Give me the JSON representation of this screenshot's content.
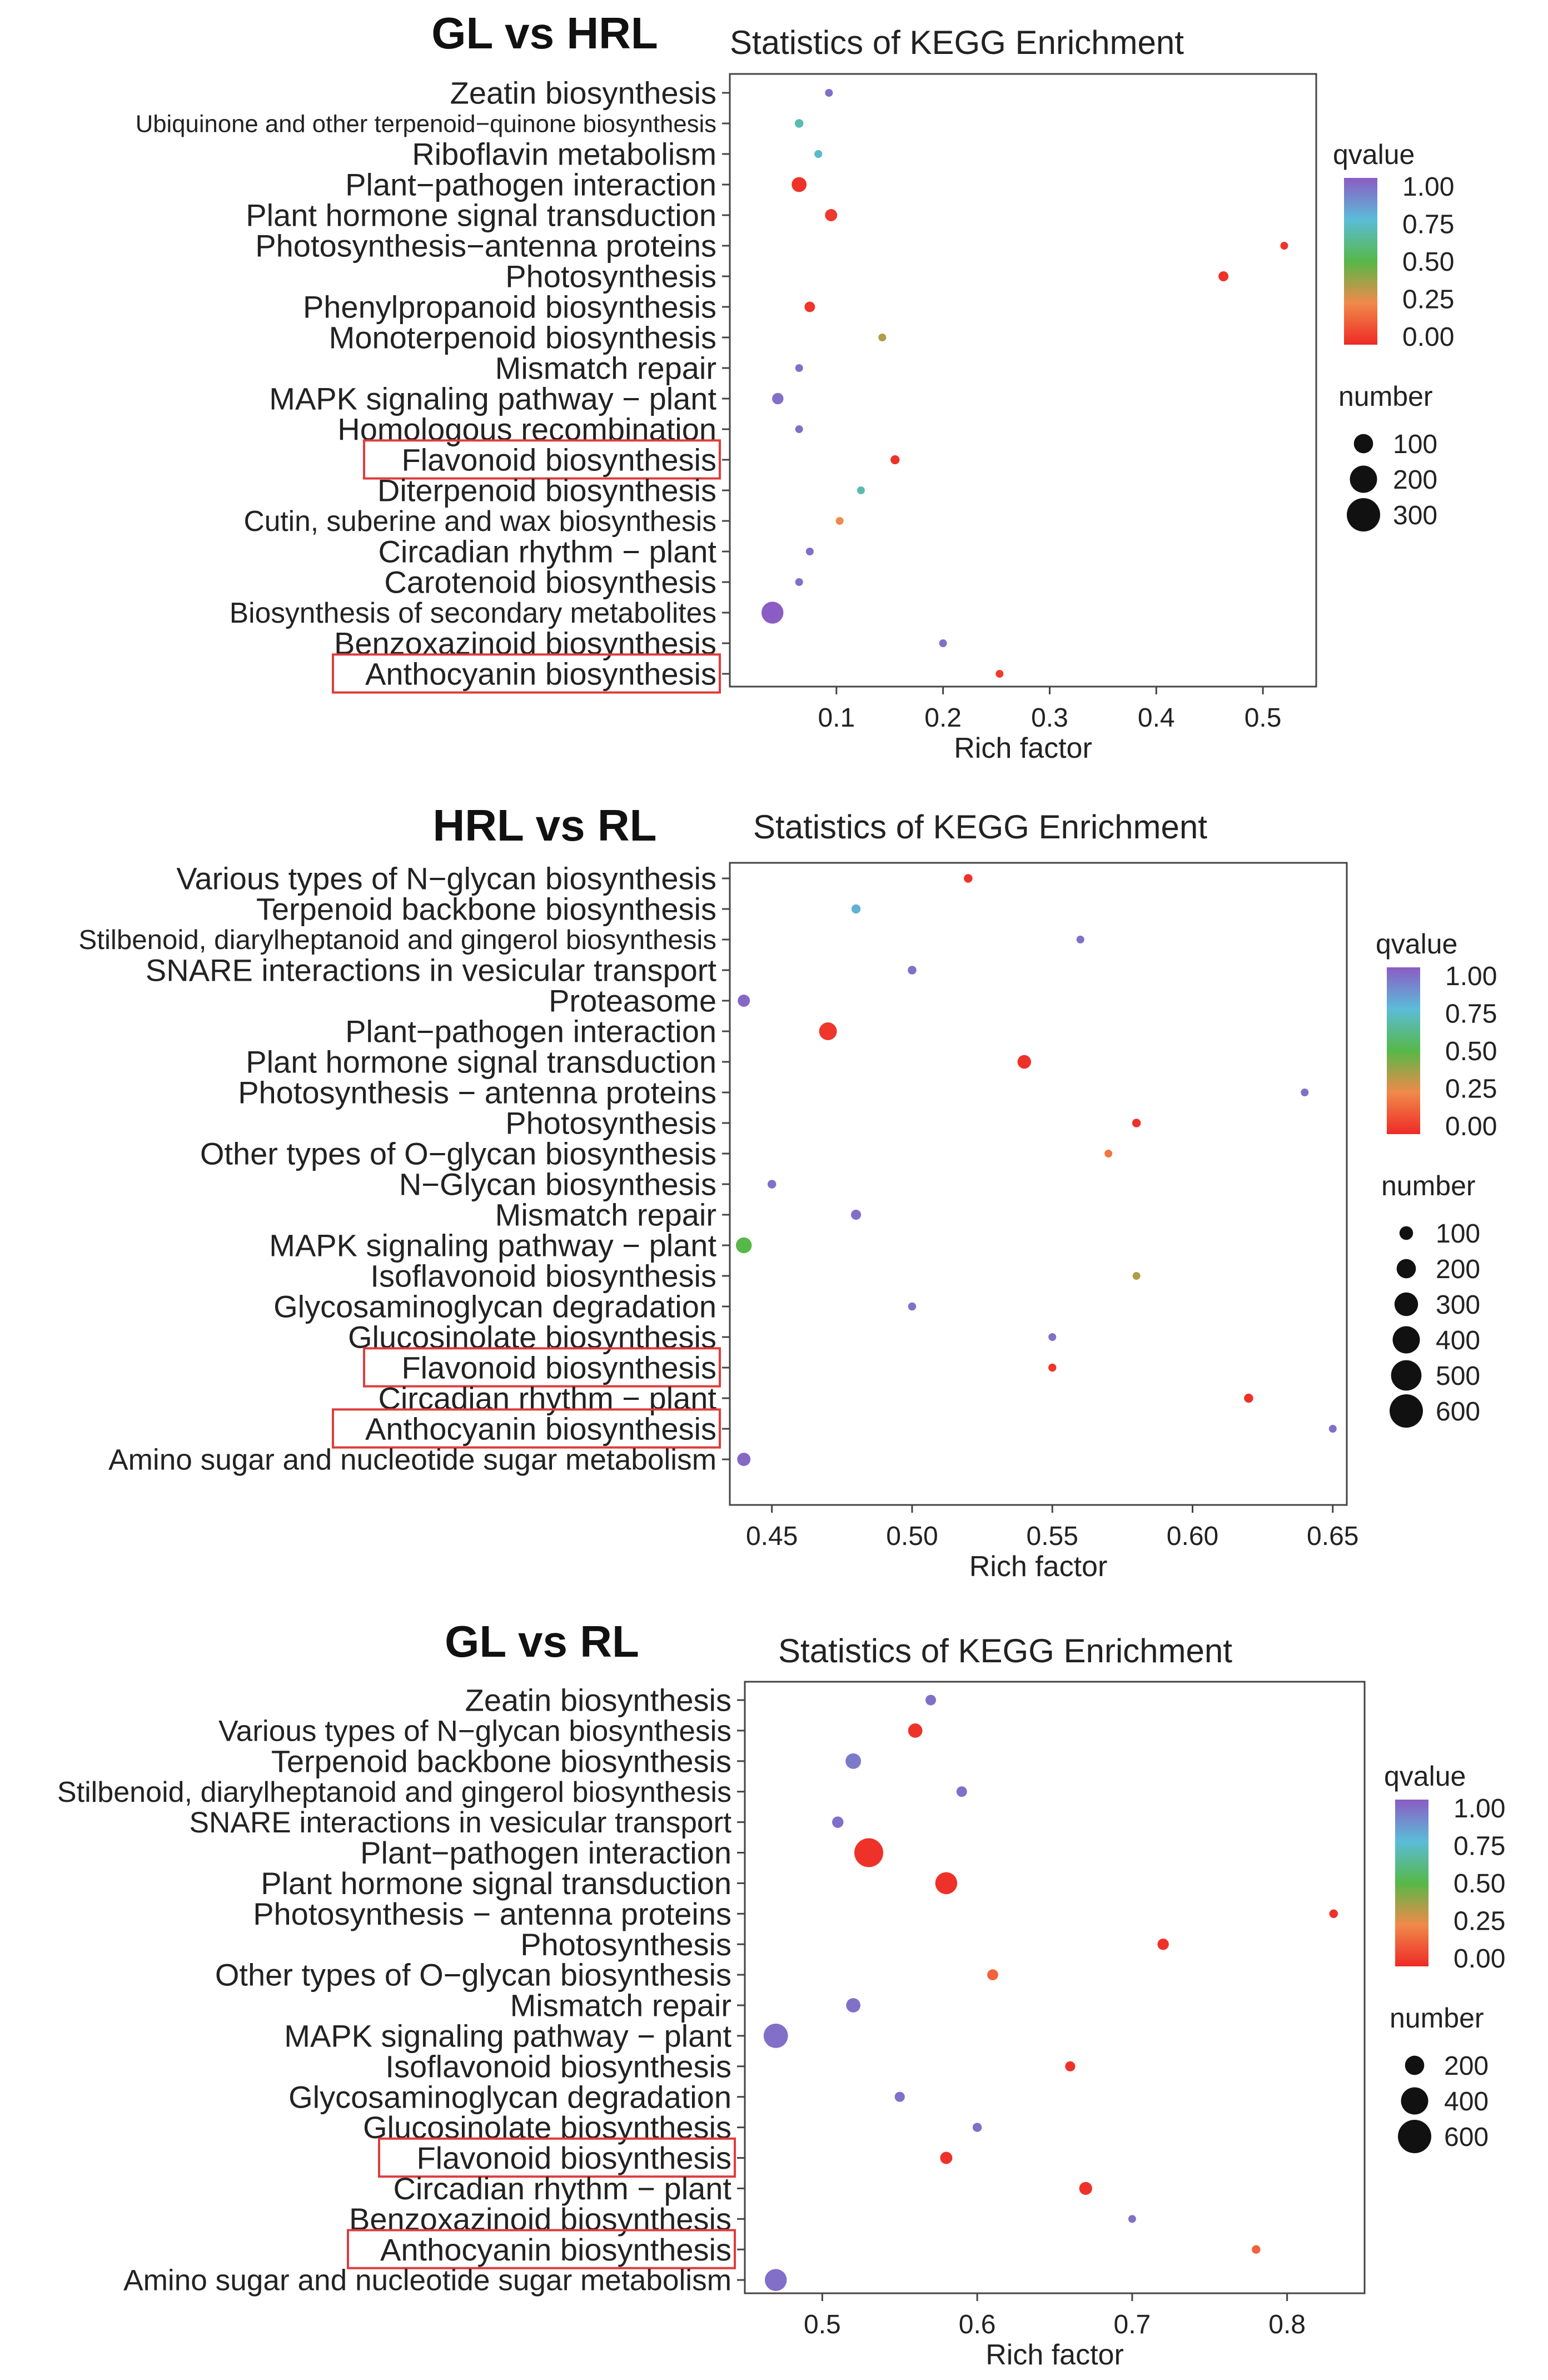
{
  "chart_data": [
    {
      "type": "scatter",
      "comparison": "GL vs HRL",
      "title": "Statistics of KEGG Enrichment",
      "xlabel": "Rich factor",
      "ylabel": "",
      "xlim": [
        0.0,
        0.55
      ],
      "xticks": [
        0.1,
        0.2,
        0.3,
        0.4,
        0.5
      ],
      "xtick_labels": [
        "0.1",
        "0.2",
        "0.3",
        "0.4",
        "0.5"
      ],
      "legend_qvalue": {
        "title": "qvalue",
        "ticks": [
          "1.00",
          "0.75",
          "0.50",
          "0.25",
          "0.00"
        ]
      },
      "legend_number": {
        "title": "number",
        "values": [
          100,
          200,
          300
        ],
        "labels": [
          "100",
          "200",
          "300"
        ]
      },
      "categories": [
        "Zeatin biosynthesis",
        "Ubiquinone and other terpenoid−quinone biosynthesis",
        "Riboflavin metabolism",
        "Plant−pathogen interaction",
        "Plant hormone signal transduction",
        "Photosynthesis−antenna proteins",
        "Photosynthesis",
        "Phenylpropanoid biosynthesis",
        "Monoterpenoid biosynthesis",
        "Mismatch repair",
        "MAPK signaling pathway − plant",
        "Homologous recombination",
        "Flavonoid biosynthesis",
        "Diterpenoid biosynthesis",
        "Cutin, suberine and wax biosynthesis",
        "Circadian rhythm − plant",
        "Carotenoid biosynthesis",
        "Biosynthesis of secondary metabolites",
        "Benzoxazinoid biosynthesis",
        "Anthocyanin biosynthesis"
      ],
      "label_sizes": [
        1,
        0.78,
        1,
        1,
        1,
        1,
        1,
        1,
        1,
        1,
        1,
        1,
        1,
        1,
        0.92,
        1,
        1,
        0.92,
        1,
        1
      ],
      "highlighted": [
        "Flavonoid biosynthesis",
        "Anthocyanin biosynthesis"
      ],
      "points": [
        {
          "rich": 0.093,
          "q": 0.95,
          "n": 8
        },
        {
          "rich": 0.065,
          "q": 0.68,
          "n": 20
        },
        {
          "rich": 0.083,
          "q": 0.72,
          "n": 17
        },
        {
          "rich": 0.065,
          "q": 0.02,
          "n": 60
        },
        {
          "rich": 0.095,
          "q": 0.04,
          "n": 40
        },
        {
          "rich": 0.52,
          "q": 0.02,
          "n": 14
        },
        {
          "rich": 0.463,
          "q": 0.02,
          "n": 27
        },
        {
          "rich": 0.075,
          "q": 0.03,
          "n": 30
        },
        {
          "rich": 0.143,
          "q": 0.35,
          "n": 8
        },
        {
          "rich": 0.065,
          "q": 0.95,
          "n": 14
        },
        {
          "rich": 0.045,
          "q": 0.95,
          "n": 35
        },
        {
          "rich": 0.065,
          "q": 0.95,
          "n": 14
        },
        {
          "rich": 0.155,
          "q": 0.02,
          "n": 22
        },
        {
          "rich": 0.123,
          "q": 0.68,
          "n": 12
        },
        {
          "rich": 0.103,
          "q": 0.25,
          "n": 12
        },
        {
          "rich": 0.075,
          "q": 0.95,
          "n": 12
        },
        {
          "rich": 0.065,
          "q": 0.95,
          "n": 15
        },
        {
          "rich": 0.04,
          "q": 1.0,
          "n": 130
        },
        {
          "rich": 0.2,
          "q": 0.95,
          "n": 4
        },
        {
          "rich": 0.253,
          "q": 0.05,
          "n": 9
        }
      ]
    },
    {
      "type": "scatter",
      "comparison": "HRL vs RL",
      "title": "Statistics of KEGG Enrichment",
      "xlabel": "Rich factor",
      "ylabel": "",
      "xlim": [
        0.435,
        0.655
      ],
      "xticks": [
        0.45,
        0.5,
        0.55,
        0.6,
        0.65
      ],
      "xtick_labels": [
        "0.45",
        "0.50",
        "0.55",
        "0.60",
        "0.65"
      ],
      "legend_qvalue": {
        "title": "qvalue",
        "ticks": [
          "1.00",
          "0.75",
          "0.50",
          "0.25",
          "0.00"
        ]
      },
      "legend_number": {
        "title": "number",
        "values": [
          100,
          200,
          300,
          400,
          500,
          600
        ],
        "labels": [
          "100",
          "200",
          "300",
          "400",
          "500",
          "600"
        ]
      },
      "categories": [
        "Various types of N−glycan biosynthesis",
        "Terpenoid backbone biosynthesis",
        "Stilbenoid, diarylheptanoid and gingerol biosynthesis",
        "SNARE interactions in vesicular transport",
        "Proteasome",
        "Plant−pathogen interaction",
        "Plant hormone signal transduction",
        "Photosynthesis − antenna proteins",
        "Photosynthesis",
        "Other types of O−glycan biosynthesis",
        "N−Glycan biosynthesis",
        "Mismatch repair",
        "MAPK signaling pathway − plant",
        "Isoflavonoid biosynthesis",
        "Glycosaminoglycan degradation",
        "Glucosinolate biosynthesis",
        "Flavonoid biosynthesis",
        "Circadian rhythm − plant",
        "Anthocyanin biosynthesis",
        "Amino sugar and nucleotide sugar metabolism"
      ],
      "label_sizes": [
        1,
        1,
        0.88,
        1,
        1,
        1,
        1,
        1,
        1,
        1,
        1,
        1,
        1,
        1,
        1,
        1,
        1,
        1,
        1,
        0.95
      ],
      "highlighted": [
        "Flavonoid biosynthesis",
        "Anthocyanin biosynthesis"
      ],
      "points": [
        {
          "rich": 0.52,
          "q": 0.02,
          "n": 40
        },
        {
          "rich": 0.48,
          "q": 0.78,
          "n": 45
        },
        {
          "rich": 0.56,
          "q": 0.95,
          "n": 20
        },
        {
          "rich": 0.5,
          "q": 0.95,
          "n": 40
        },
        {
          "rich": 0.44,
          "q": 0.97,
          "n": 80
        },
        {
          "rich": 0.47,
          "q": 0.03,
          "n": 170
        },
        {
          "rich": 0.54,
          "q": 0.02,
          "n": 100
        },
        {
          "rich": 0.64,
          "q": 0.95,
          "n": 15
        },
        {
          "rich": 0.58,
          "q": 0.02,
          "n": 40
        },
        {
          "rich": 0.57,
          "q": 0.2,
          "n": 30
        },
        {
          "rich": 0.45,
          "q": 0.95,
          "n": 40
        },
        {
          "rich": 0.48,
          "q": 0.95,
          "n": 55
        },
        {
          "rich": 0.44,
          "q": 0.5,
          "n": 135
        },
        {
          "rich": 0.58,
          "q": 0.35,
          "n": 25
        },
        {
          "rich": 0.5,
          "q": 0.95,
          "n": 35
        },
        {
          "rich": 0.55,
          "q": 0.95,
          "n": 25
        },
        {
          "rich": 0.55,
          "q": 0.03,
          "n": 35
        },
        {
          "rich": 0.62,
          "q": 0.02,
          "n": 45
        },
        {
          "rich": 0.65,
          "q": 0.95,
          "n": 10
        },
        {
          "rich": 0.44,
          "q": 0.97,
          "n": 95
        }
      ]
    },
    {
      "type": "scatter",
      "comparison": "GL vs RL",
      "title": "Statistics of KEGG Enrichment",
      "xlabel": "Rich factor",
      "ylabel": "",
      "xlim": [
        0.45,
        0.85
      ],
      "xticks": [
        0.5,
        0.6,
        0.7,
        0.8
      ],
      "xtick_labels": [
        "0.5",
        "0.6",
        "0.7",
        "0.8"
      ],
      "legend_qvalue": {
        "title": "qvalue",
        "ticks": [
          "1.00",
          "0.75",
          "0.50",
          "0.25",
          "0.00"
        ]
      },
      "legend_number": {
        "title": "number",
        "values": [
          200,
          400,
          600
        ],
        "labels": [
          "200",
          "400",
          "600"
        ]
      },
      "categories": [
        "Zeatin biosynthesis",
        "Various types of N−glycan biosynthesis",
        "Terpenoid backbone biosynthesis",
        "Stilbenoid, diarylheptanoid and gingerol biosynthesis",
        "SNARE interactions in vesicular transport",
        "Plant−pathogen interaction",
        "Plant hormone signal transduction",
        "Photosynthesis − antenna proteins",
        "Photosynthesis",
        "Other types of O−glycan biosynthesis",
        "Mismatch repair",
        "MAPK signaling pathway − plant",
        "Isoflavonoid biosynthesis",
        "Glycosaminoglycan degradation",
        "Glucosinolate biosynthesis",
        "Flavonoid biosynthesis",
        "Circadian rhythm − plant",
        "Benzoxazinoid biosynthesis",
        "Anthocyanin biosynthesis",
        "Amino sugar and nucleotide sugar metabolism"
      ],
      "label_sizes": [
        1,
        0.95,
        1,
        0.93,
        0.95,
        1,
        1,
        1,
        1,
        1,
        1,
        1,
        1,
        1,
        1,
        1,
        1,
        1,
        1,
        0.95
      ],
      "highlighted": [
        "Flavonoid biosynthesis",
        "Anthocyanin biosynthesis"
      ],
      "points": [
        {
          "rich": 0.57,
          "q": 0.95,
          "n": 60
        },
        {
          "rich": 0.56,
          "q": 0.02,
          "n": 110
        },
        {
          "rich": 0.52,
          "q": 0.92,
          "n": 130
        },
        {
          "rich": 0.59,
          "q": 0.95,
          "n": 60
        },
        {
          "rich": 0.51,
          "q": 0.95,
          "n": 70
        },
        {
          "rich": 0.53,
          "q": 0.02,
          "n": 450
        },
        {
          "rich": 0.58,
          "q": 0.02,
          "n": 260
        },
        {
          "rich": 0.83,
          "q": 0.02,
          "n": 40
        },
        {
          "rich": 0.72,
          "q": 0.02,
          "n": 70
        },
        {
          "rich": 0.61,
          "q": 0.15,
          "n": 65
        },
        {
          "rich": 0.52,
          "q": 0.95,
          "n": 110
        },
        {
          "rich": 0.47,
          "q": 0.95,
          "n": 320
        },
        {
          "rich": 0.66,
          "q": 0.02,
          "n": 55
        },
        {
          "rich": 0.55,
          "q": 0.95,
          "n": 55
        },
        {
          "rich": 0.6,
          "q": 0.95,
          "n": 45
        },
        {
          "rich": 0.58,
          "q": 0.02,
          "n": 80
        },
        {
          "rich": 0.67,
          "q": 0.02,
          "n": 90
        },
        {
          "rich": 0.7,
          "q": 0.95,
          "n": 25
        },
        {
          "rich": 0.78,
          "q": 0.15,
          "n": 40
        },
        {
          "rich": 0.47,
          "q": 0.95,
          "n": 260
        }
      ]
    }
  ]
}
